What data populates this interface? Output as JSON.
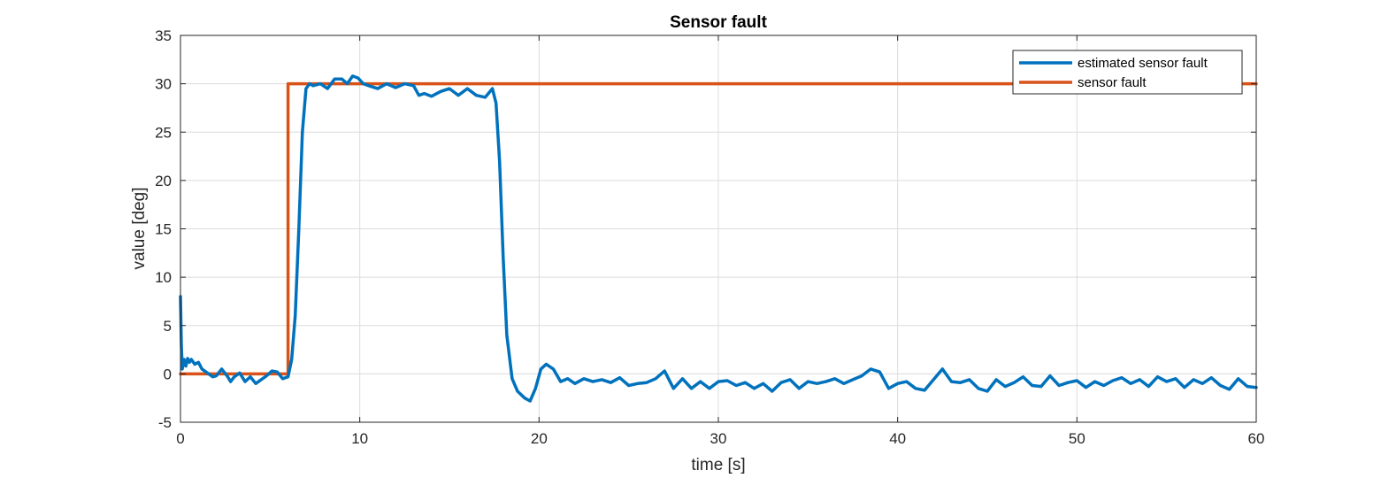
{
  "chart_data": {
    "type": "line",
    "title": "Sensor fault",
    "xlabel": "time [s]",
    "ylabel": "value [deg]",
    "xlim": [
      0,
      60
    ],
    "ylim": [
      -5,
      35
    ],
    "xticks": [
      0,
      10,
      20,
      30,
      40,
      50,
      60
    ],
    "yticks": [
      -5,
      0,
      5,
      10,
      15,
      20,
      25,
      30,
      35
    ],
    "grid": true,
    "legend_position": "top-right",
    "series": [
      {
        "name": "estimated sensor fault",
        "color": "#0072BD",
        "x": [
          0,
          0.05,
          0.1,
          0.2,
          0.3,
          0.4,
          0.5,
          0.6,
          0.8,
          1.0,
          1.2,
          1.5,
          1.8,
          2.0,
          2.3,
          2.6,
          2.8,
          3.0,
          3.3,
          3.6,
          3.9,
          4.2,
          4.5,
          4.8,
          5.1,
          5.4,
          5.7,
          6.0,
          6.2,
          6.4,
          6.6,
          6.8,
          7.0,
          7.2,
          7.4,
          7.8,
          8.2,
          8.6,
          9.0,
          9.3,
          9.6,
          9.9,
          10.2,
          10.5,
          11.0,
          11.5,
          12.0,
          12.5,
          13.0,
          13.3,
          13.6,
          14.0,
          14.5,
          15.0,
          15.5,
          16.0,
          16.5,
          17.0,
          17.4,
          17.6,
          17.8,
          18.0,
          18.2,
          18.5,
          18.8,
          19.2,
          19.5,
          19.8,
          20.1,
          20.4,
          20.8,
          21.2,
          21.6,
          22.0,
          22.5,
          23.0,
          23.5,
          24.0,
          24.5,
          25.0,
          25.5,
          26.0,
          26.5,
          27.0,
          27.5,
          28.0,
          28.5,
          29.0,
          29.5,
          30.0,
          30.5,
          31.0,
          31.5,
          32.0,
          32.5,
          33.0,
          33.5,
          34.0,
          34.5,
          35.0,
          35.5,
          36.0,
          36.5,
          37.0,
          37.5,
          38.0,
          38.5,
          39.0,
          39.5,
          40.0,
          40.5,
          41.0,
          41.5,
          42.0,
          42.5,
          43.0,
          43.5,
          44.0,
          44.5,
          45.0,
          45.5,
          46.0,
          46.5,
          47.0,
          47.5,
          48.0,
          48.5,
          49.0,
          49.5,
          50.0,
          50.5,
          51.0,
          51.5,
          52.0,
          52.5,
          53.0,
          53.5,
          54.0,
          54.5,
          55.0,
          55.5,
          56.0,
          56.5,
          57.0,
          57.5,
          58.0,
          58.5,
          59.0,
          59.5,
          60.0
        ],
        "y": [
          8,
          3,
          0.5,
          1.5,
          0.8,
          1.6,
          1.2,
          1.5,
          1.0,
          1.2,
          0.5,
          0.1,
          -0.3,
          -0.2,
          0.5,
          -0.2,
          -0.8,
          -0.3,
          0.1,
          -0.8,
          -0.3,
          -1.0,
          -0.6,
          -0.2,
          0.3,
          0.2,
          -0.5,
          -0.3,
          1.5,
          6,
          15,
          25,
          29.5,
          30,
          29.8,
          30,
          29.5,
          30.5,
          30.5,
          30,
          30.8,
          30.6,
          30,
          29.8,
          29.5,
          30,
          29.6,
          30,
          29.8,
          28.8,
          29,
          28.7,
          29.2,
          29.5,
          28.8,
          29.5,
          28.8,
          28.6,
          29.5,
          28,
          22,
          12,
          4,
          -0.5,
          -1.8,
          -2.5,
          -2.8,
          -1.5,
          0.5,
          1.0,
          0.5,
          -0.8,
          -0.5,
          -1.0,
          -0.5,
          -0.8,
          -0.6,
          -0.9,
          -0.4,
          -1.2,
          -1.0,
          -0.9,
          -0.5,
          0.3,
          -1.5,
          -0.5,
          -1.5,
          -0.8,
          -1.5,
          -0.8,
          -0.7,
          -1.2,
          -0.9,
          -1.5,
          -1.0,
          -1.8,
          -0.9,
          -0.6,
          -1.5,
          -0.8,
          -1.0,
          -0.8,
          -0.5,
          -1.0,
          -0.6,
          -0.2,
          0.5,
          0.2,
          -1.5,
          -1.0,
          -0.8,
          -1.5,
          -1.7,
          -0.6,
          0.5,
          -0.8,
          -0.9,
          -0.6,
          -1.5,
          -1.8,
          -0.6,
          -1.3,
          -0.9,
          -0.3,
          -1.2,
          -1.3,
          -0.2,
          -1.2,
          -0.9,
          -0.7,
          -1.4,
          -0.8,
          -1.2,
          -0.7,
          -0.4,
          -1.0,
          -0.6,
          -1.3,
          -0.3,
          -0.8,
          -0.5,
          -1.4,
          -0.6,
          -1.0,
          -0.4,
          -1.2,
          -1.6,
          -0.5,
          -1.3,
          -1.4
        ]
      },
      {
        "name": "sensor fault",
        "color": "#D95319",
        "x": [
          0,
          6,
          6,
          60
        ],
        "y": [
          0,
          0,
          30,
          30
        ]
      }
    ]
  }
}
